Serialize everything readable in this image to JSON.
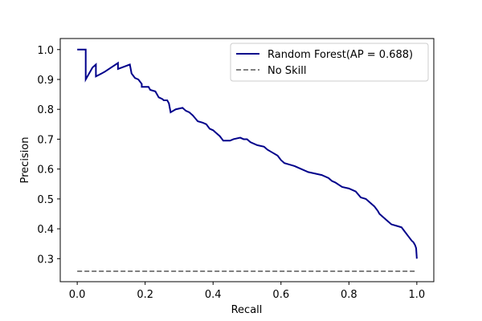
{
  "chart_data": {
    "type": "line",
    "title": "",
    "xlabel": "Recall",
    "ylabel": "Precision",
    "xlim": [
      -0.05,
      1.05
    ],
    "ylim": [
      0.223,
      1.037
    ],
    "xticks": [
      0.0,
      0.2,
      0.4,
      0.6,
      0.8,
      1.0
    ],
    "xtick_labels": [
      "0.0",
      "0.2",
      "0.4",
      "0.6",
      "0.8",
      "1.0"
    ],
    "yticks": [
      0.3,
      0.4,
      0.5,
      0.6,
      0.7,
      0.8,
      0.9,
      1.0
    ],
    "ytick_labels": [
      "0.3",
      "0.4",
      "0.5",
      "0.6",
      "0.7",
      "0.8",
      "0.9",
      "1.0"
    ],
    "legend_position": "top-right",
    "series": [
      {
        "name": "Random Forest(AP = 0.688)",
        "style": "solid",
        "color": "#00008b",
        "points": [
          [
            0.0,
            1.0
          ],
          [
            0.025,
            1.0
          ],
          [
            0.025,
            0.9
          ],
          [
            0.045,
            0.94
          ],
          [
            0.055,
            0.95
          ],
          [
            0.055,
            0.91
          ],
          [
            0.08,
            0.925
          ],
          [
            0.12,
            0.955
          ],
          [
            0.12,
            0.935
          ],
          [
            0.155,
            0.95
          ],
          [
            0.16,
            0.92
          ],
          [
            0.17,
            0.905
          ],
          [
            0.18,
            0.9
          ],
          [
            0.19,
            0.885
          ],
          [
            0.19,
            0.875
          ],
          [
            0.21,
            0.875
          ],
          [
            0.215,
            0.865
          ],
          [
            0.23,
            0.86
          ],
          [
            0.24,
            0.84
          ],
          [
            0.25,
            0.835
          ],
          [
            0.255,
            0.83
          ],
          [
            0.265,
            0.83
          ],
          [
            0.27,
            0.82
          ],
          [
            0.275,
            0.79
          ],
          [
            0.29,
            0.8
          ],
          [
            0.31,
            0.805
          ],
          [
            0.32,
            0.795
          ],
          [
            0.33,
            0.79
          ],
          [
            0.34,
            0.78
          ],
          [
            0.355,
            0.76
          ],
          [
            0.37,
            0.755
          ],
          [
            0.38,
            0.75
          ],
          [
            0.39,
            0.735
          ],
          [
            0.4,
            0.73
          ],
          [
            0.41,
            0.72
          ],
          [
            0.42,
            0.71
          ],
          [
            0.43,
            0.695
          ],
          [
            0.45,
            0.695
          ],
          [
            0.46,
            0.7
          ],
          [
            0.48,
            0.705
          ],
          [
            0.49,
            0.7
          ],
          [
            0.5,
            0.7
          ],
          [
            0.51,
            0.69
          ],
          [
            0.53,
            0.68
          ],
          [
            0.55,
            0.675
          ],
          [
            0.56,
            0.665
          ],
          [
            0.575,
            0.655
          ],
          [
            0.59,
            0.645
          ],
          [
            0.6,
            0.63
          ],
          [
            0.61,
            0.62
          ],
          [
            0.625,
            0.615
          ],
          [
            0.64,
            0.61
          ],
          [
            0.65,
            0.605
          ],
          [
            0.66,
            0.6
          ],
          [
            0.68,
            0.59
          ],
          [
            0.7,
            0.585
          ],
          [
            0.72,
            0.58
          ],
          [
            0.74,
            0.57
          ],
          [
            0.75,
            0.56
          ],
          [
            0.76,
            0.555
          ],
          [
            0.78,
            0.54
          ],
          [
            0.8,
            0.535
          ],
          [
            0.82,
            0.525
          ],
          [
            0.835,
            0.505
          ],
          [
            0.85,
            0.5
          ],
          [
            0.86,
            0.49
          ],
          [
            0.875,
            0.475
          ],
          [
            0.885,
            0.46
          ],
          [
            0.89,
            0.45
          ],
          [
            0.9,
            0.44
          ],
          [
            0.91,
            0.43
          ],
          [
            0.925,
            0.415
          ],
          [
            0.94,
            0.41
          ],
          [
            0.955,
            0.405
          ],
          [
            0.965,
            0.39
          ],
          [
            0.975,
            0.375
          ],
          [
            0.985,
            0.36
          ],
          [
            0.99,
            0.355
          ],
          [
            0.995,
            0.345
          ],
          [
            0.998,
            0.335
          ],
          [
            1.0,
            0.3
          ]
        ]
      },
      {
        "name": "No Skill",
        "style": "dashed",
        "color": "#808080",
        "points": [
          [
            0.0,
            0.258
          ],
          [
            1.0,
            0.258
          ]
        ]
      }
    ]
  }
}
